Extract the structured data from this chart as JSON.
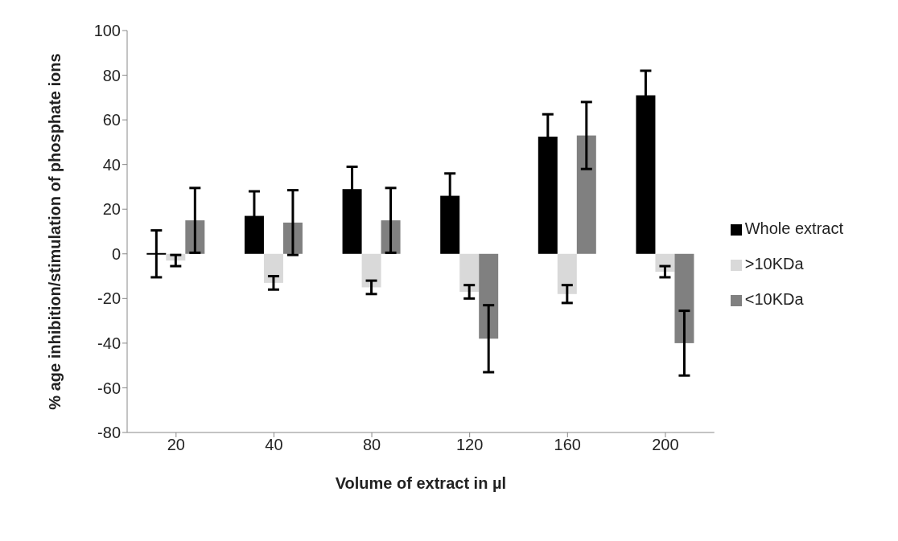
{
  "chart_data": {
    "type": "bar",
    "xlabel": "Volume of extract in µl",
    "ylabel": "% age inhibition/stimulation of phosphate ions",
    "categories": [
      "20",
      "40",
      "80",
      "120",
      "160",
      "200"
    ],
    "series": [
      {
        "name": "Whole extract",
        "color": "#000000",
        "values": [
          0,
          17,
          29,
          26,
          52.5,
          71
        ],
        "errors": [
          10.5,
          11,
          10,
          10,
          10,
          11
        ]
      },
      {
        "name": ">10KDa",
        "color": "#d9d9d9",
        "values": [
          -3,
          -13,
          -15,
          -17,
          -18,
          -8
        ],
        "errors": [
          2.5,
          3,
          3,
          3,
          4,
          2.5
        ]
      },
      {
        "name": "<10KDa",
        "color": "#808080",
        "values": [
          15,
          14,
          15,
          -38,
          53,
          -40
        ],
        "errors": [
          14.5,
          14.5,
          14.5,
          15,
          15,
          14.5
        ]
      }
    ],
    "ylim": [
      -80,
      100
    ],
    "yticks": [
      -80,
      -60,
      -40,
      -20,
      0,
      20,
      40,
      60,
      80,
      100
    ],
    "grid": false,
    "legend": "right"
  }
}
